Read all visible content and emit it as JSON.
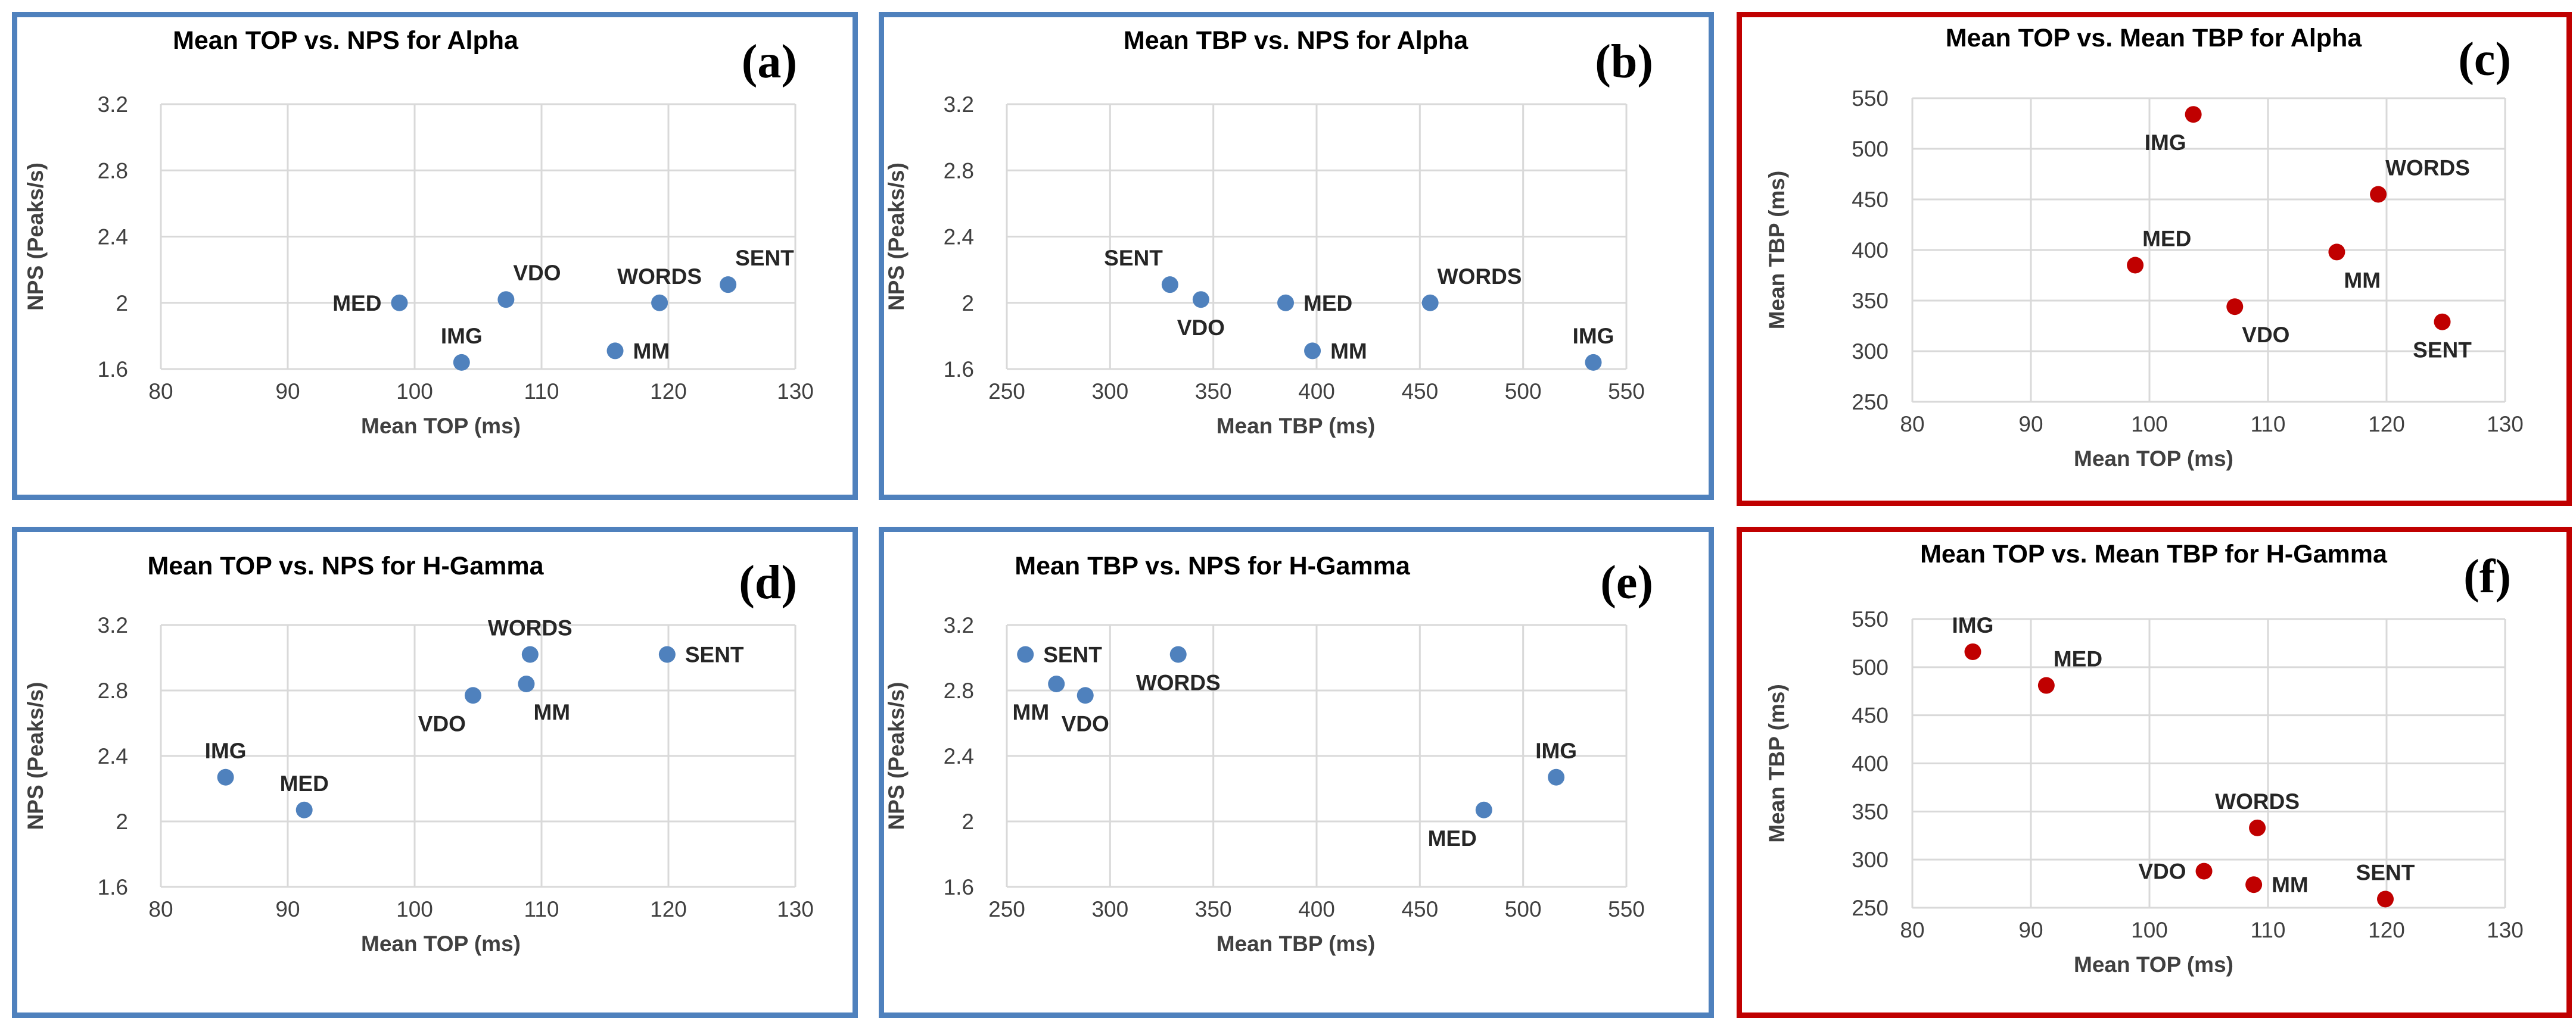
{
  "colors": {
    "blue": "#4f81bd",
    "red": "#c00000",
    "marker_blue": "#4f81bd",
    "marker_red": "#c00000"
  },
  "chart_data": [
    {
      "id": "a",
      "type": "scatter",
      "letter": "(a)",
      "title": "Mean TOP vs. NPS for Alpha",
      "xlabel": "Mean TOP (ms)",
      "ylabel": "NPS (Peaks/s)",
      "xlim": [
        80,
        130
      ],
      "ylim": [
        1.6,
        3.2
      ],
      "xticks": [
        "80",
        "90",
        "100",
        "110",
        "120",
        "130"
      ],
      "yticks": [
        "1.6",
        "2",
        "2.4",
        "2.8",
        "3.2"
      ],
      "points": [
        {
          "label": "MED",
          "x": 98.8,
          "y": 2.0,
          "pos": "left"
        },
        {
          "label": "IMG",
          "x": 103.7,
          "y": 1.64,
          "pos": "above"
        },
        {
          "label": "VDO",
          "x": 107.2,
          "y": 2.02,
          "pos": "above-right"
        },
        {
          "label": "MM",
          "x": 115.8,
          "y": 1.71,
          "pos": "right"
        },
        {
          "label": "WORDS",
          "x": 119.3,
          "y": 2.0,
          "pos": "above"
        },
        {
          "label": "SENT",
          "x": 124.7,
          "y": 2.11,
          "pos": "above-right"
        }
      ]
    },
    {
      "id": "b",
      "type": "scatter",
      "letter": "(b)",
      "title": "Mean TBP vs. NPS for Alpha",
      "xlabel": "Mean TBP (ms)",
      "ylabel": "NPS (Peaks/s)",
      "xlim": [
        250,
        550
      ],
      "ylim": [
        1.6,
        3.2
      ],
      "xticks": [
        "250",
        "300",
        "350",
        "400",
        "450",
        "500",
        "550"
      ],
      "yticks": [
        "1.6",
        "2",
        "2.4",
        "2.8",
        "3.2"
      ],
      "points": [
        {
          "label": "SENT",
          "x": 329,
          "y": 2.11,
          "pos": "above-left"
        },
        {
          "label": "VDO",
          "x": 344,
          "y": 2.02,
          "pos": "below"
        },
        {
          "label": "MED",
          "x": 385,
          "y": 2.0,
          "pos": "right"
        },
        {
          "label": "MM",
          "x": 398,
          "y": 1.71,
          "pos": "right"
        },
        {
          "label": "WORDS",
          "x": 455,
          "y": 2.0,
          "pos": "above-right"
        },
        {
          "label": "IMG",
          "x": 534,
          "y": 1.64,
          "pos": "above"
        }
      ]
    },
    {
      "id": "c",
      "type": "scatter",
      "letter": "(c)",
      "title": "Mean TOP vs. Mean TBP for Alpha",
      "xlabel": "Mean TOP (ms)",
      "ylabel": "Mean TBP (ms)",
      "xlim": [
        80,
        130
      ],
      "ylim": [
        250,
        550
      ],
      "xticks": [
        "80",
        "90",
        "100",
        "110",
        "120",
        "130"
      ],
      "yticks": [
        "250",
        "300",
        "350",
        "400",
        "450",
        "500",
        "550"
      ],
      "points": [
        {
          "label": "IMG",
          "x": 103.7,
          "y": 534,
          "pos": "below-left"
        },
        {
          "label": "MED",
          "x": 98.8,
          "y": 385,
          "pos": "above-right"
        },
        {
          "label": "VDO",
          "x": 107.2,
          "y": 344,
          "pos": "below-right"
        },
        {
          "label": "WORDS",
          "x": 119.3,
          "y": 455,
          "pos": "above-right"
        },
        {
          "label": "MM",
          "x": 115.8,
          "y": 398,
          "pos": "below-right"
        },
        {
          "label": "SENT",
          "x": 124.7,
          "y": 329,
          "pos": "below"
        }
      ]
    },
    {
      "id": "d",
      "type": "scatter",
      "letter": "(d)",
      "title": "Mean TOP vs. NPS for H-Gamma",
      "xlabel": "Mean TOP (ms)",
      "ylabel": "NPS (Peaks/s)",
      "xlim": [
        80,
        130
      ],
      "ylim": [
        1.6,
        3.2
      ],
      "xticks": [
        "80",
        "90",
        "100",
        "110",
        "120",
        "130"
      ],
      "yticks": [
        "1.6",
        "2",
        "2.4",
        "2.8",
        "3.2"
      ],
      "points": [
        {
          "label": "IMG",
          "x": 85.1,
          "y": 2.27,
          "pos": "above"
        },
        {
          "label": "MED",
          "x": 91.3,
          "y": 2.07,
          "pos": "above"
        },
        {
          "label": "VDO",
          "x": 104.6,
          "y": 2.77,
          "pos": "below-left"
        },
        {
          "label": "MM",
          "x": 108.8,
          "y": 2.84,
          "pos": "below-right"
        },
        {
          "label": "WORDS",
          "x": 109.1,
          "y": 3.02,
          "pos": "above"
        },
        {
          "label": "SENT",
          "x": 119.9,
          "y": 3.02,
          "pos": "right"
        }
      ]
    },
    {
      "id": "e",
      "type": "scatter",
      "letter": "(e)",
      "title": "Mean TBP vs. NPS for H-Gamma",
      "xlabel": "Mean TBP (ms)",
      "ylabel": "NPS (Peaks/s)",
      "xlim": [
        250,
        550
      ],
      "ylim": [
        1.6,
        3.2
      ],
      "xticks": [
        "250",
        "300",
        "350",
        "400",
        "450",
        "500",
        "550"
      ],
      "yticks": [
        "1.6",
        "2",
        "2.4",
        "2.8",
        "3.2"
      ],
      "points": [
        {
          "label": "SENT",
          "x": 259,
          "y": 3.02,
          "pos": "right"
        },
        {
          "label": "MM",
          "x": 274,
          "y": 2.84,
          "pos": "below-left"
        },
        {
          "label": "VDO",
          "x": 288,
          "y": 2.77,
          "pos": "below"
        },
        {
          "label": "WORDS",
          "x": 333,
          "y": 3.02,
          "pos": "below"
        },
        {
          "label": "MED",
          "x": 481,
          "y": 2.07,
          "pos": "below-left"
        },
        {
          "label": "IMG",
          "x": 516,
          "y": 2.27,
          "pos": "above"
        }
      ]
    },
    {
      "id": "f",
      "type": "scatter",
      "letter": "(f)",
      "title": "Mean TOP vs. Mean TBP for H-Gamma",
      "xlabel": "Mean TOP (ms)",
      "ylabel": "Mean TBP (ms)",
      "xlim": [
        80,
        130
      ],
      "ylim": [
        250,
        550
      ],
      "xticks": [
        "80",
        "90",
        "100",
        "110",
        "120",
        "130"
      ],
      "yticks": [
        "250",
        "300",
        "350",
        "400",
        "450",
        "500",
        "550"
      ],
      "points": [
        {
          "label": "IMG",
          "x": 85.1,
          "y": 516,
          "pos": "above"
        },
        {
          "label": "MED",
          "x": 91.3,
          "y": 481,
          "pos": "above-right"
        },
        {
          "label": "WORDS",
          "x": 109.1,
          "y": 333,
          "pos": "above"
        },
        {
          "label": "VDO",
          "x": 104.6,
          "y": 288,
          "pos": "left"
        },
        {
          "label": "MM",
          "x": 108.8,
          "y": 274,
          "pos": "right"
        },
        {
          "label": "SENT",
          "x": 119.9,
          "y": 259,
          "pos": "above"
        }
      ]
    }
  ]
}
